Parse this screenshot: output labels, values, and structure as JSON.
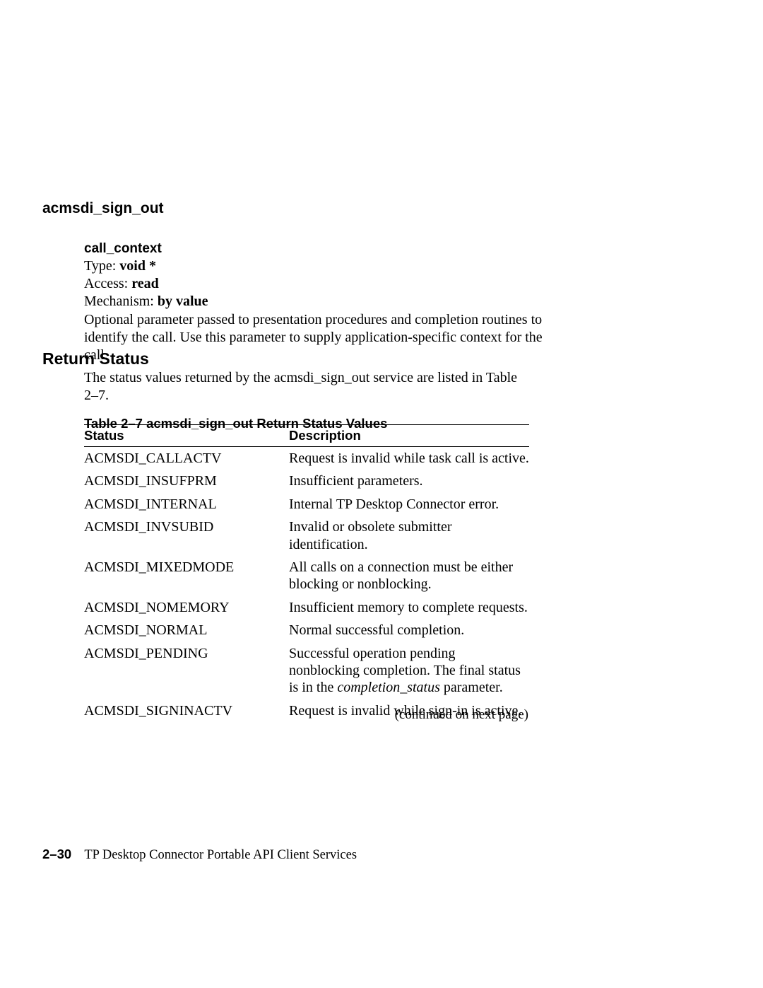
{
  "pageTitle": "acmsdi_sign_out",
  "param": {
    "name": "call_context",
    "typeLabel": "Type:",
    "typeValue": "void *",
    "accessLabel": "Access:",
    "accessValue": "read",
    "mechLabel": "Mechanism:",
    "mechValue": "by value",
    "description": "Optional parameter passed to presentation procedures and completion routines to identify the call. Use this parameter to supply application-specific context for the call."
  },
  "sectionHeading": "Return Status",
  "returnIntro": "The status values returned by the acmsdi_sign_out service are listed in Table 2–7.",
  "tableCaption": "Table 2–7   acmsdi_sign_out Return Status Values",
  "tableHeaders": {
    "status": "Status",
    "description": "Description"
  },
  "rows": [
    {
      "status": "ACMSDI_CALLACTV",
      "desc": "Request is invalid while task call is active."
    },
    {
      "status": "ACMSDI_INSUFPRM",
      "desc": "Insufficient parameters."
    },
    {
      "status": "ACMSDI_INTERNAL",
      "desc": "Internal TP Desktop Connector error."
    },
    {
      "status": "ACMSDI_INVSUBID",
      "desc": "Invalid or obsolete submitter identification."
    },
    {
      "status": "ACMSDI_MIXEDMODE",
      "desc": "All calls on a connection must be either blocking or nonblocking."
    },
    {
      "status": "ACMSDI_NOMEMORY",
      "desc": "Insufficient memory to complete requests."
    },
    {
      "status": "ACMSDI_NORMAL",
      "desc": "Normal successful completion."
    },
    {
      "status": "ACMSDI_PENDING",
      "descParts": [
        "Successful operation pending nonblocking completion. The final status is in the ",
        "completion_status",
        " parameter."
      ]
    },
    {
      "status": "ACMSDI_SIGNINACTV",
      "desc": "Request is invalid while sign-in is active."
    }
  ],
  "continuedNote": "(continued on next page)",
  "footer": {
    "pageNum": "2–30",
    "title": "TP Desktop Connector Portable API Client Services"
  }
}
